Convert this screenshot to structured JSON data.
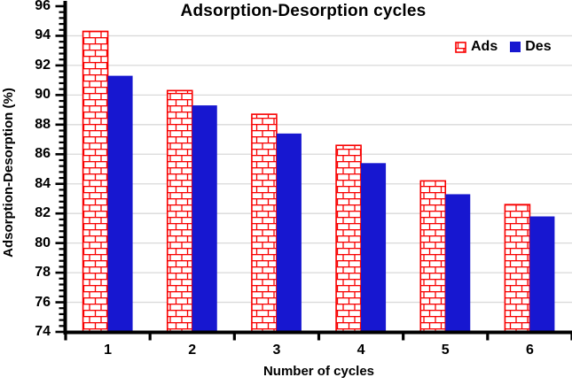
{
  "chart_data": {
    "type": "bar",
    "title": "Adsorption-Desorption cycles",
    "xlabel": "Number of cycles",
    "ylabel": "Adsorption-Desorption (%)",
    "categories": [
      "1",
      "2",
      "3",
      "4",
      "5",
      "6"
    ],
    "series": [
      {
        "name": "Ads",
        "pattern": "red-brick-hatch",
        "color": "#f80000",
        "values": [
          94.3,
          90.3,
          88.7,
          86.6,
          84.2,
          82.6
        ]
      },
      {
        "name": "Des",
        "pattern": "solid",
        "color": "#1717d0",
        "values": [
          91.3,
          89.3,
          87.4,
          85.4,
          83.3,
          81.8
        ]
      }
    ],
    "ylim": [
      74,
      96
    ],
    "y_major_step": 2,
    "y_minor_step": 0.4,
    "y_tick_labels": [
      "74",
      "76",
      "78",
      "80",
      "82",
      "84",
      "86",
      "88",
      "90",
      "92",
      "94",
      "96"
    ],
    "grid": "horizontal-major-only",
    "legend_position": "top-right-inside",
    "colors": {
      "grid": "#d9d9d9",
      "axis": "#000000",
      "text": "#000000",
      "background": "#ffffff"
    }
  }
}
